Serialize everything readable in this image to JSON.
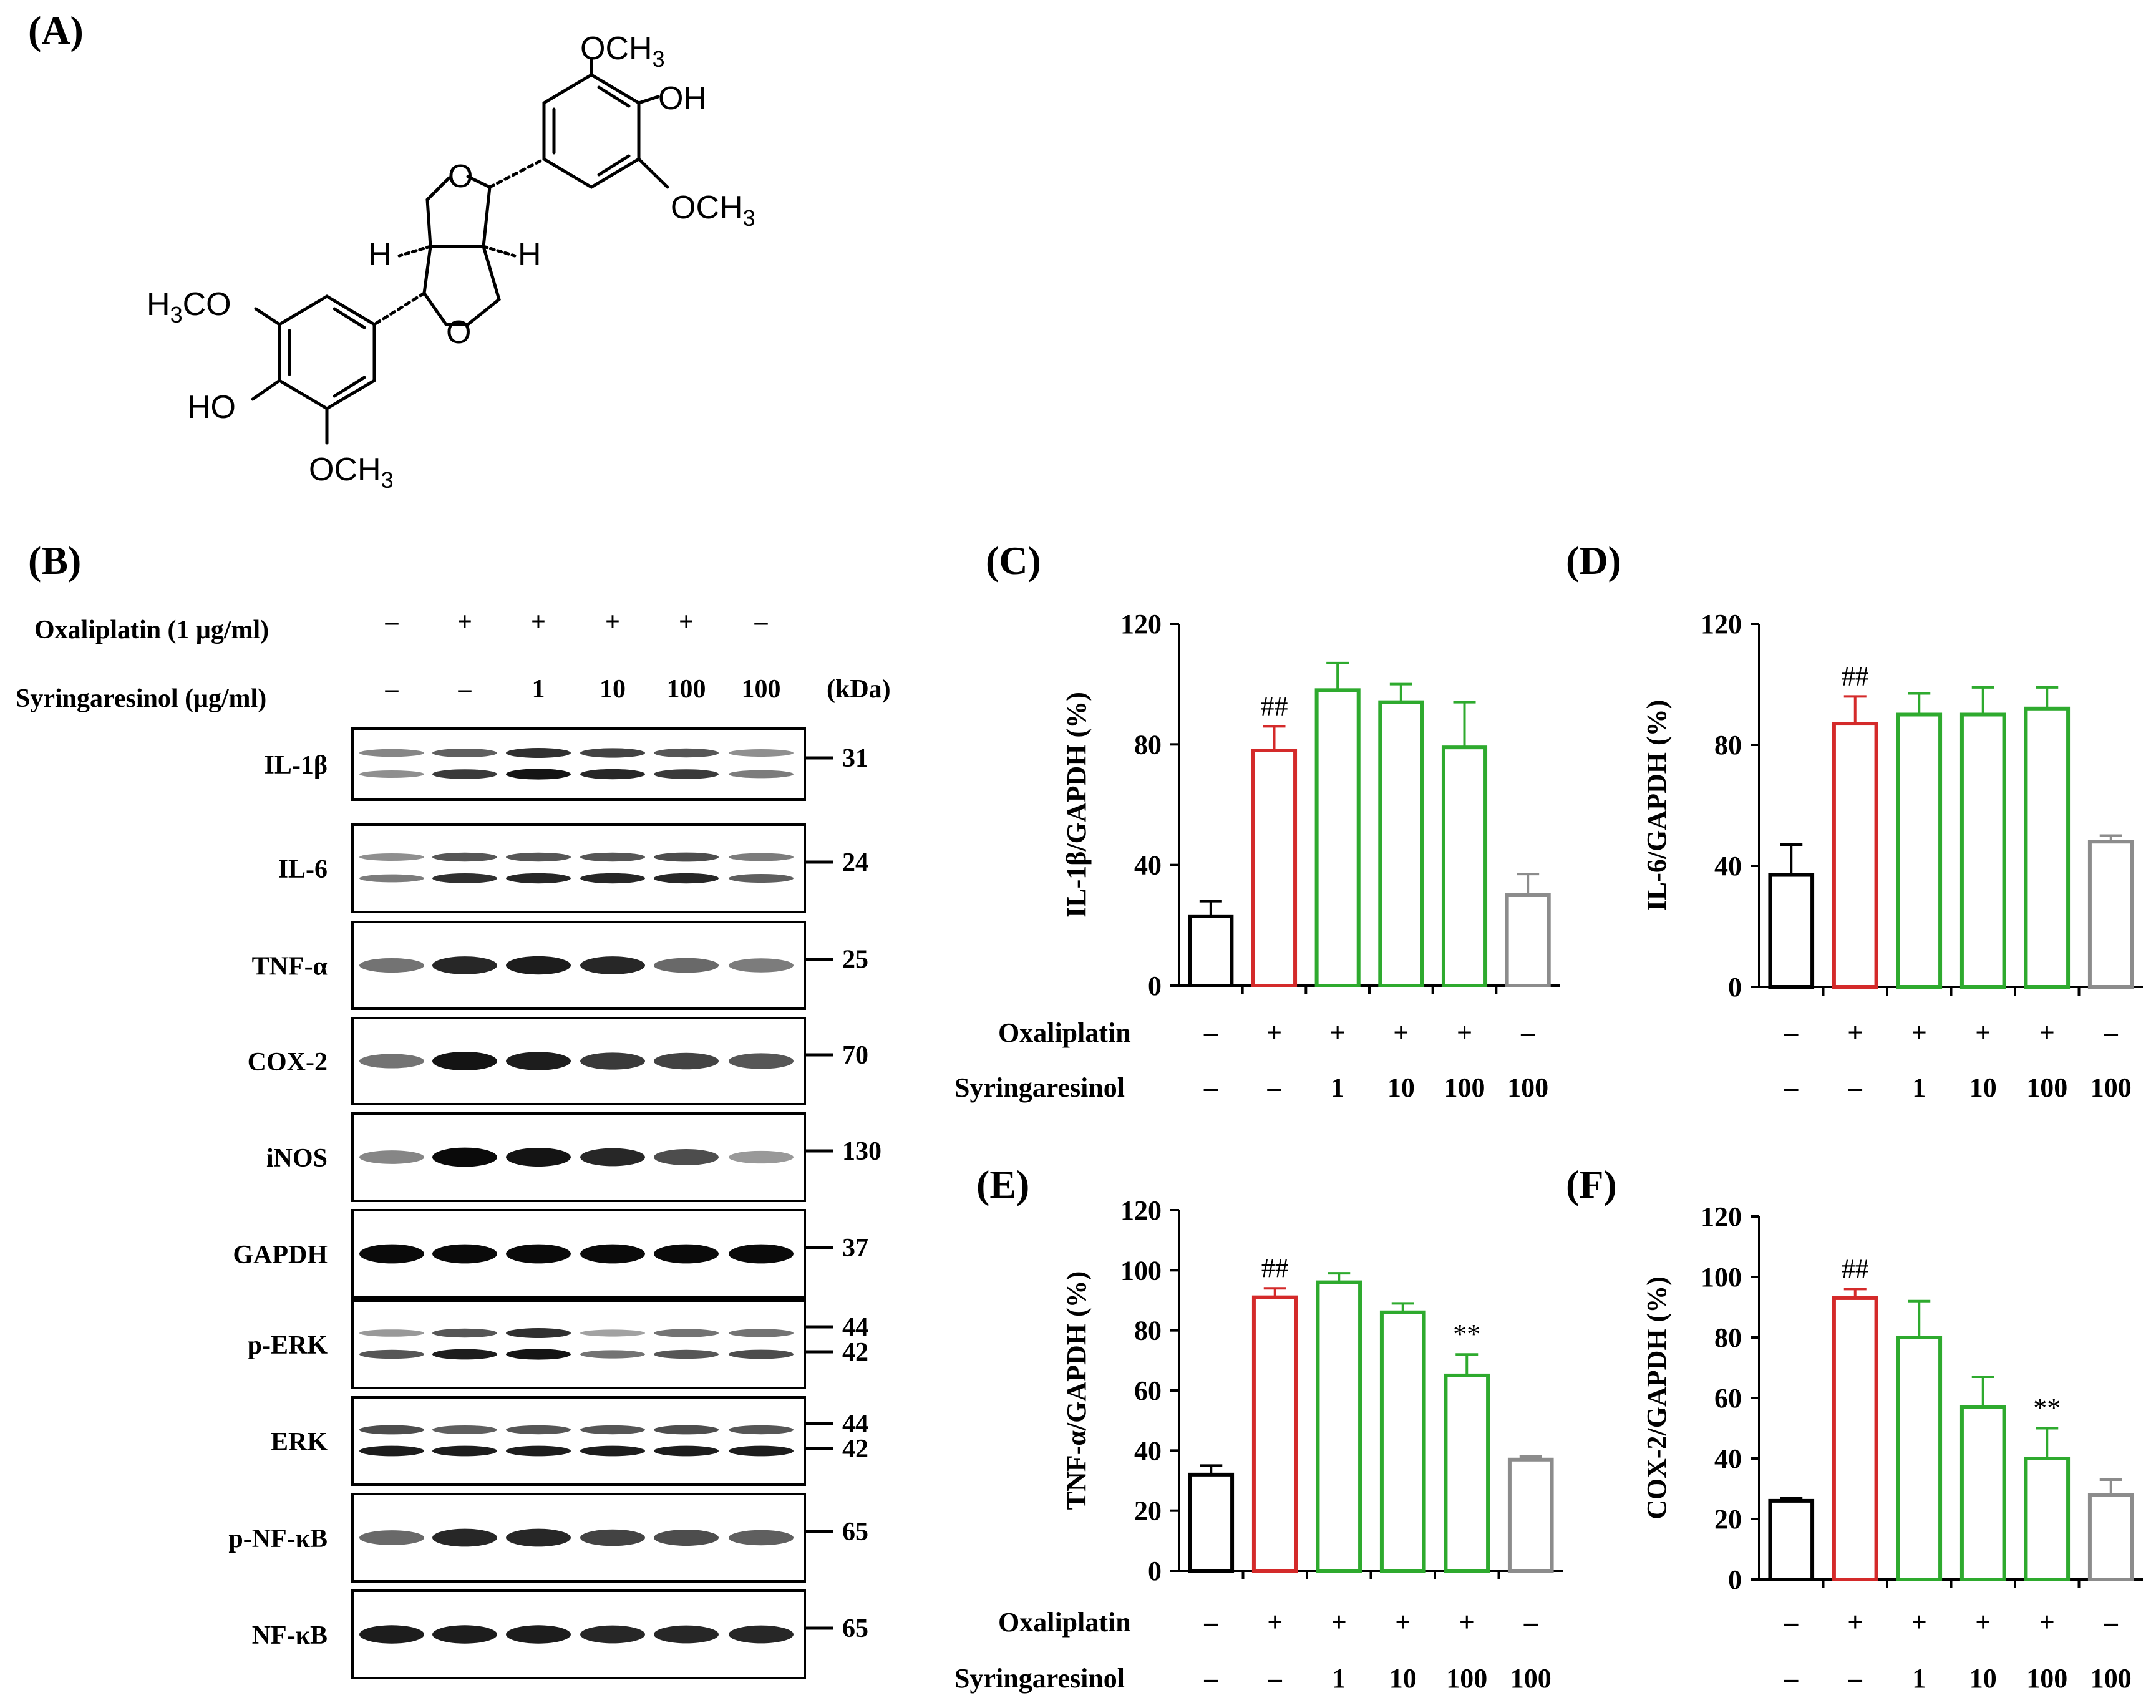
{
  "panel_labels": {
    "A": "(A)",
    "B": "(B)",
    "C": "(C)",
    "D": "(D)",
    "E": "(E)",
    "F": "(F)"
  },
  "structure": {
    "och3_top": "OCH3",
    "oh_right": "OH",
    "och3_right": "OCH3",
    "o_top": "O",
    "o_bottom": "O",
    "h_left": "H",
    "h_right": "H",
    "h3co_left": "H3CO",
    "ho_left": "HO",
    "och3_bottom": "OCH3"
  },
  "blot": {
    "row_labels": {
      "oxaliplatin": "Oxaliplatin (1 μg/ml)",
      "syringaresinol": "Syringaresinol (μg/ml)"
    },
    "oxaliplatin_signs": [
      "-",
      "+",
      "+",
      "+",
      "+",
      "-"
    ],
    "syringaresinol_doses": [
      "-",
      "-",
      "1",
      "10",
      "100",
      "100"
    ],
    "kda_label": "(kDa)",
    "proteins": [
      {
        "name": "IL-1β",
        "markers": [
          "31"
        ]
      },
      {
        "name": "IL-6",
        "markers": [
          "24"
        ]
      },
      {
        "name": "TNF-α",
        "markers": [
          "25"
        ]
      },
      {
        "name": "COX-2",
        "markers": [
          "70"
        ]
      },
      {
        "name": "iNOS",
        "markers": [
          "130"
        ]
      },
      {
        "name": "GAPDH",
        "markers": [
          "37"
        ]
      },
      {
        "name": "p-ERK",
        "markers": [
          "44",
          "42"
        ]
      },
      {
        "name": "ERK",
        "markers": [
          "44",
          "42"
        ]
      },
      {
        "name": "p-NF-κB",
        "markers": [
          "65"
        ]
      },
      {
        "name": "NF-κB",
        "markers": [
          "65"
        ]
      }
    ]
  },
  "treatment_labels": {
    "oxaliplatin": "Oxaliplatin",
    "syringaresinol": "Syringaresinol"
  },
  "colors": {
    "control": "#000000",
    "oxaliplatin": "#d42a2a",
    "syringaresinol": "#2eaa2e",
    "syr_only": "#8c8c8c"
  },
  "chart_data": [
    {
      "panel": "C",
      "type": "bar",
      "ylabel": "IL-1β/GAPDH (%)",
      "ylim": [
        0,
        120
      ],
      "yticks": [
        0,
        40,
        80,
        120
      ],
      "oxaliplatin": [
        "-",
        "+",
        "+",
        "+",
        "+",
        "-"
      ],
      "syringaresinol": [
        "-",
        "-",
        "1",
        "10",
        "100",
        "100"
      ],
      "values": [
        23,
        78,
        98,
        94,
        79,
        30
      ],
      "errors": [
        5,
        8,
        9,
        6,
        15,
        7
      ],
      "annotations": [
        {
          "bar": 1,
          "text": "##"
        }
      ],
      "show_treatment_labels": true
    },
    {
      "panel": "D",
      "type": "bar",
      "ylabel": "IL-6/GAPDH (%)",
      "ylim": [
        0,
        120
      ],
      "yticks": [
        0,
        40,
        80,
        120
      ],
      "oxaliplatin": [
        "-",
        "+",
        "+",
        "+",
        "+",
        "-"
      ],
      "syringaresinol": [
        "-",
        "-",
        "1",
        "10",
        "100",
        "100"
      ],
      "values": [
        37,
        87,
        90,
        90,
        92,
        48
      ],
      "errors": [
        10,
        9,
        7,
        9,
        7,
        2
      ],
      "annotations": [
        {
          "bar": 1,
          "text": "##"
        }
      ],
      "show_treatment_labels": false
    },
    {
      "panel": "E",
      "type": "bar",
      "ylabel": "TNF-α/GAPDH (%)",
      "ylim": [
        0,
        120
      ],
      "yticks": [
        0,
        20,
        40,
        60,
        80,
        100,
        120
      ],
      "oxaliplatin": [
        "-",
        "+",
        "+",
        "+",
        "+",
        "-"
      ],
      "syringaresinol": [
        "-",
        "-",
        "1",
        "10",
        "100",
        "100"
      ],
      "values": [
        32,
        91,
        96,
        86,
        65,
        37
      ],
      "errors": [
        3,
        3,
        3,
        3,
        7,
        1
      ],
      "annotations": [
        {
          "bar": 1,
          "text": "##"
        },
        {
          "bar": 4,
          "text": "**"
        }
      ],
      "show_treatment_labels": true
    },
    {
      "panel": "F",
      "type": "bar",
      "ylabel": "COX-2/GAPDH (%)",
      "ylim": [
        0,
        120
      ],
      "yticks": [
        0,
        20,
        40,
        60,
        80,
        100,
        120
      ],
      "oxaliplatin": [
        "-",
        "+",
        "+",
        "+",
        "+",
        "-"
      ],
      "syringaresinol": [
        "-",
        "-",
        "1",
        "10",
        "100",
        "100"
      ],
      "values": [
        26,
        93,
        80,
        57,
        40,
        28
      ],
      "errors": [
        1,
        3,
        12,
        10,
        10,
        5
      ],
      "annotations": [
        {
          "bar": 1,
          "text": "##"
        },
        {
          "bar": 4,
          "text": "**"
        }
      ],
      "show_treatment_labels": false
    }
  ]
}
